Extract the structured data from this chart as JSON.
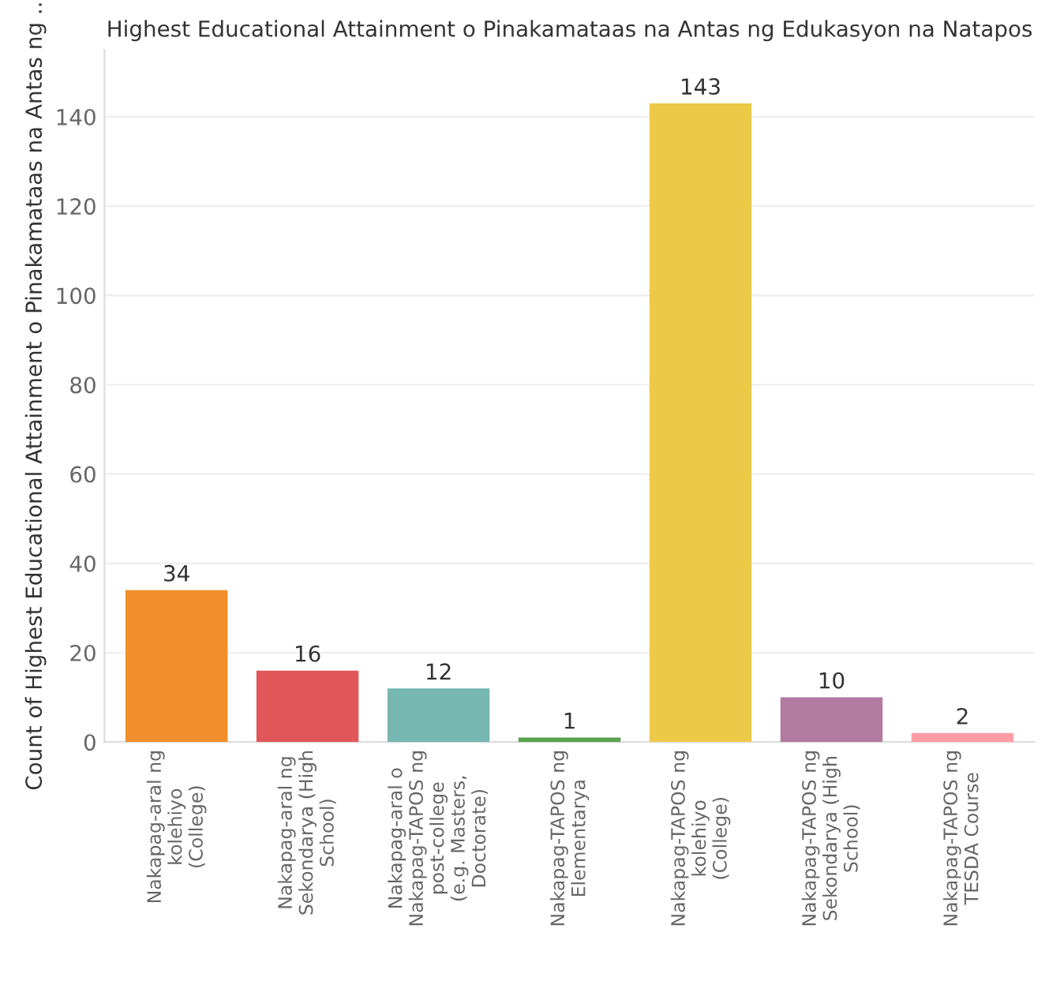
{
  "chart_data": {
    "type": "bar",
    "title": "Highest Educational Attainment o Pinakamataas na Antas ng Edukasyon na Natapos",
    "ylabel": "Count of Highest Educational Attainment o Pinakamataas na Antas ng ..",
    "categories": [
      "Nakapag-aral ng kolehiyo (College)",
      "Nakapag-aral ng Sekondarya (High School)",
      "Nakapag-aral o Nakapag-TAPOS ng post-college (e.g. Masters, Doctorate)",
      "Nakapag-TAPOS ng Elementarya",
      "Nakapag-TAPOS ng kolehiyo (College)",
      "Nakapag-TAPOS ng Sekondarya (High School)",
      "Nakapag-TAPOS ng TESDA Course"
    ],
    "values": [
      34,
      16,
      12,
      1,
      143,
      10,
      2
    ],
    "colors": [
      "#f28e2b",
      "#e15759",
      "#76b7b2",
      "#59a14f",
      "#edc948",
      "#b07aa1",
      "#ff9da7"
    ],
    "ylim": [
      0,
      155
    ],
    "yticks": [
      0,
      20,
      40,
      60,
      80,
      100,
      120,
      140
    ],
    "grid": "y",
    "data_labels": true
  }
}
